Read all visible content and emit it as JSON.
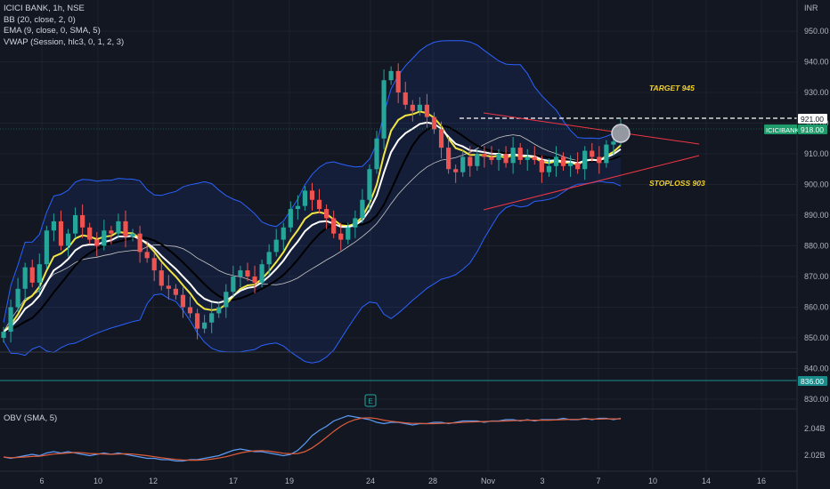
{
  "legend": {
    "title": "ICICI BANK, 1h, NSE",
    "bb": "BB (20, close, 2, 0)",
    "ema": "EMA (9, close, 0, SMA, 5)",
    "vwap": "VWAP (Session, hlc3, 0, 1, 2, 3)",
    "obv": "OBV (SMA, 5)"
  },
  "currency_label": "INR",
  "colors": {
    "background": "#131722",
    "up": "#26a69a",
    "down": "#ef5350",
    "bb": "#2962ff",
    "ema": "#ffffff",
    "vwap": "#f0e442",
    "trendline": "#f23645",
    "annotation": "#f5d328",
    "obv": "#5b9cf6",
    "obv_ma": "#e05d3a",
    "label_green": "#1e9b6b",
    "label_teal": "#1a8c8c"
  },
  "annotations": {
    "target": "TARGET 945",
    "stoploss": "STOPLOSS 903",
    "label_921": "921.00",
    "symbol_label": "ICICIBANK",
    "price_label": "918.00",
    "label_836": "836.00",
    "event_marker": "E"
  },
  "chart_data": [
    {
      "type": "candlestick",
      "title": "ICICI BANK, 1h, NSE",
      "x_ticks": [
        "6",
        "10",
        "12",
        "17",
        "19",
        "24",
        "28",
        "Nov",
        "3",
        "7",
        "10",
        "14",
        "16"
      ],
      "y_ticks": [
        830,
        840,
        850,
        860,
        870,
        880,
        890,
        900,
        910,
        920,
        930,
        940,
        950
      ],
      "ylim": [
        826,
        955
      ],
      "close_series": [
        852,
        860,
        866,
        873,
        868,
        874,
        885,
        888,
        880,
        884,
        890,
        886,
        882,
        880,
        885,
        884,
        888,
        883,
        884,
        878,
        876,
        872,
        867,
        866,
        864,
        860,
        858,
        853,
        855,
        858,
        860,
        865,
        870,
        872,
        870,
        868,
        874,
        878,
        882,
        886,
        892,
        893,
        898,
        895,
        892,
        889,
        884,
        882,
        886,
        889,
        895,
        905,
        915,
        934,
        937,
        930,
        926,
        924,
        926,
        922,
        918,
        912,
        905,
        904,
        909,
        906,
        910,
        909,
        908,
        910,
        907,
        912,
        908,
        909,
        908,
        904,
        906,
        909,
        906,
        907,
        905,
        911,
        909,
        907,
        913,
        914,
        918
      ],
      "horizontal_lines": [
        921,
        836
      ],
      "annotations": [
        "TARGET 945",
        "STOPLOSS 903"
      ]
    },
    {
      "type": "line",
      "title": "OBV (SMA, 5)",
      "y_ticks_labels": [
        "2.04B",
        "2.02B"
      ],
      "values": [
        2.018,
        2.017,
        2.018,
        2.019,
        2.02,
        2.019,
        2.021,
        2.022,
        2.021,
        2.022,
        2.021,
        2.02,
        2.019,
        2.02,
        2.021,
        2.02,
        2.021,
        2.02,
        2.019,
        2.018,
        2.017,
        2.017,
        2.016,
        2.016,
        2.015,
        2.015,
        2.016,
        2.016,
        2.017,
        2.018,
        2.019,
        2.021,
        2.023,
        2.024,
        2.023,
        2.022,
        2.022,
        2.021,
        2.02,
        2.019,
        2.02,
        2.023,
        2.028,
        2.034,
        2.038,
        2.041,
        2.045,
        2.047,
        2.049,
        2.048,
        2.047,
        2.046,
        2.044,
        2.043,
        2.044,
        2.044,
        2.043,
        2.042,
        2.043,
        2.043,
        2.044,
        2.044,
        2.043,
        2.044,
        2.045,
        2.045,
        2.045,
        2.044,
        2.045,
        2.045,
        2.046,
        2.046,
        2.045,
        2.046,
        2.045,
        2.046,
        2.046,
        2.046,
        2.047,
        2.046,
        2.046,
        2.047,
        2.046,
        2.047,
        2.047,
        2.046,
        2.047
      ]
    }
  ]
}
